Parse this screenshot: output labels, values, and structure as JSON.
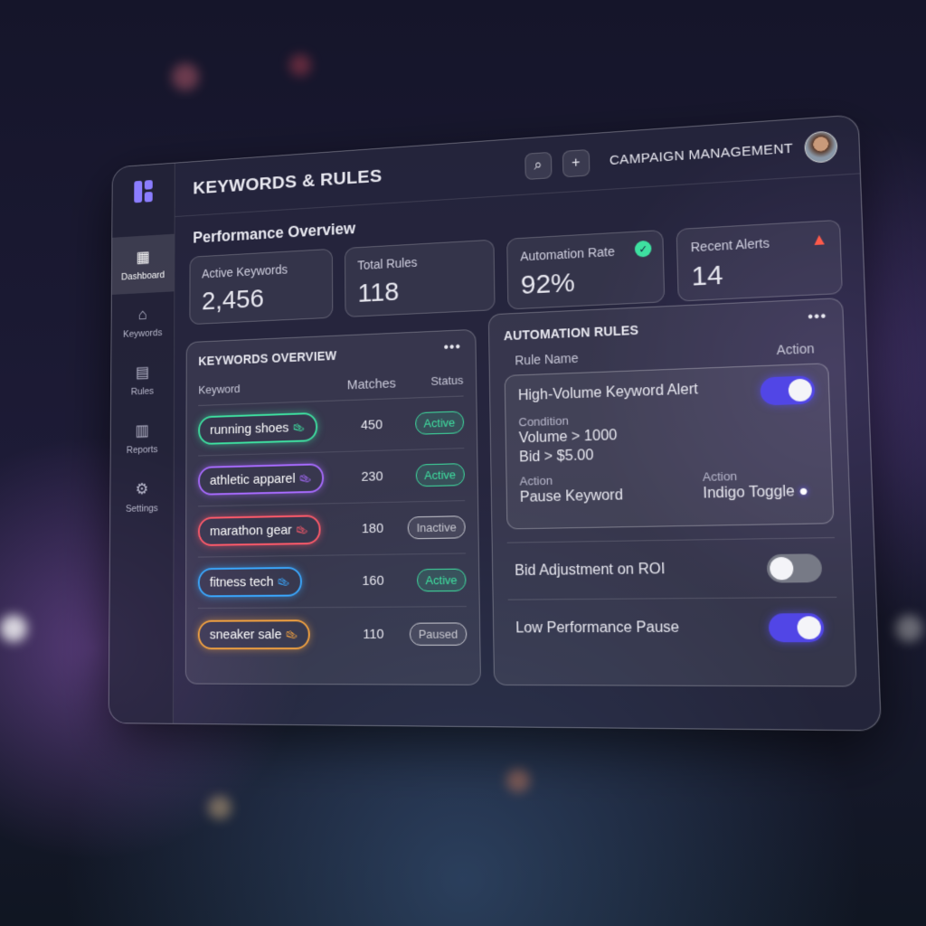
{
  "header": {
    "title": "KEYWORDS & RULES",
    "section": "CAMPAIGN MANAGEMENT",
    "icons": [
      "search-icon",
      "plus-icon"
    ]
  },
  "sidebar": {
    "items": [
      {
        "label": "Dashboard",
        "icon": "grid-icon",
        "active": true
      },
      {
        "label": "Keywords",
        "icon": "tag-icon"
      },
      {
        "label": "Rules",
        "icon": "document-icon"
      },
      {
        "label": "Reports",
        "icon": "chart-icon"
      },
      {
        "label": "Settings",
        "icon": "gear-icon"
      }
    ]
  },
  "overview": {
    "title": "Performance Overview",
    "cards": [
      {
        "label": "Active Keywords",
        "value": "2,456"
      },
      {
        "label": "Total Rules",
        "value": "118"
      },
      {
        "label": "Automation Rate",
        "value": "92%",
        "badge": "check-icon"
      },
      {
        "label": "Recent Alerts",
        "value": "14",
        "badge": "warning-icon"
      }
    ]
  },
  "keywords": {
    "title": "KEYWORDS OVERVIEW",
    "columns": [
      "Keyword",
      "Matches",
      "Status"
    ],
    "rows": [
      {
        "keyword": "running shoes",
        "matches": "450",
        "status": "Active",
        "color": "#3ee0a0"
      },
      {
        "keyword": "athletic apparel",
        "matches": "230",
        "status": "Active",
        "color": "#a86bff"
      },
      {
        "keyword": "marathon gear",
        "matches": "180",
        "status": "Inactive",
        "color": "#ff5a6a"
      },
      {
        "keyword": "fitness tech",
        "matches": "160",
        "status": "Active",
        "color": "#3aa8ff"
      },
      {
        "keyword": "sneaker sale",
        "matches": "110",
        "status": "Paused",
        "color": "#f0a040"
      }
    ]
  },
  "rules": {
    "title": "AUTOMATION RULES",
    "col_name": "Rule Name",
    "col_action": "Action",
    "featured": {
      "name": "High-Volume Keyword Alert",
      "enabled": true,
      "condition_label": "Condition",
      "conditions": [
        "Volume > 1000",
        "Bid > $5.00"
      ],
      "action_label": "Action",
      "action": "Pause Keyword",
      "action2_label": "Action",
      "action2": "Indigo Toggle"
    },
    "items": [
      {
        "name": "Bid Adjustment on ROI",
        "enabled": false
      },
      {
        "name": "Low Performance Pause",
        "enabled": true
      }
    ]
  },
  "colors": {
    "accent": "#5146e6",
    "active": "#3ee0a0",
    "alert": "#ff5a4a"
  }
}
